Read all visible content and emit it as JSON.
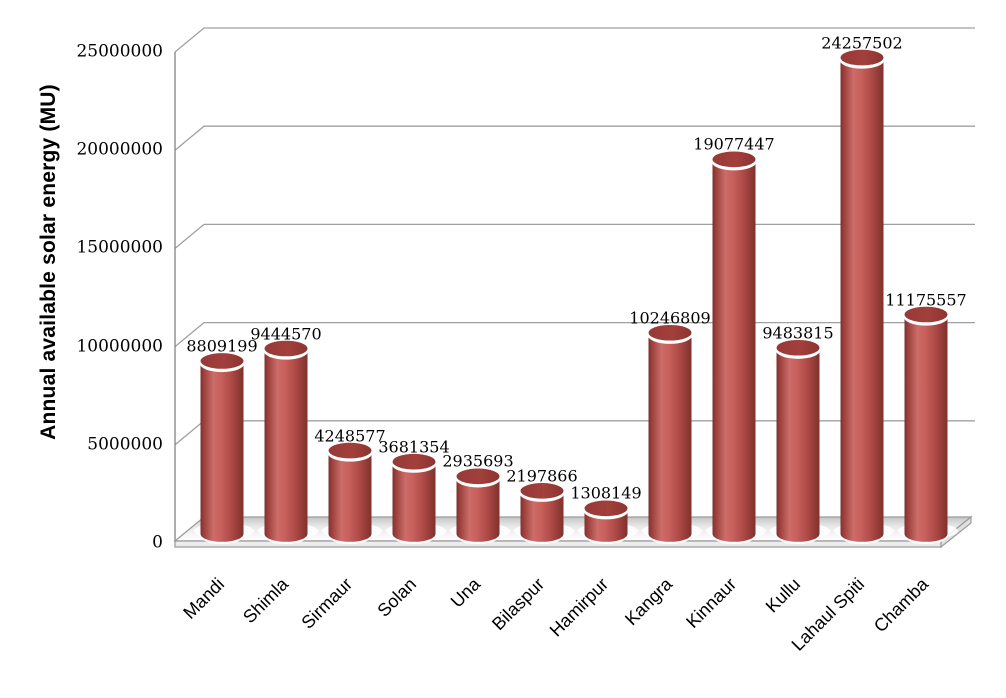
{
  "chart_data": {
    "type": "bar",
    "subtype": "3d-cylinder",
    "title": "",
    "xlabel": "",
    "ylabel": "Annual available solar energy (MU)",
    "categories": [
      "Mandi",
      "Shimla",
      "Sirmaur",
      "Solan",
      "Una",
      "Bilaspur",
      "Hamirpur",
      "Kangra",
      "Kinnaur",
      "Kullu",
      "Lahaul Spiti",
      "Chamba"
    ],
    "values": [
      8809199,
      9444570,
      4248577,
      3681354,
      2935693,
      2197866,
      1308149,
      10246809,
      19077447,
      9483815,
      24257502,
      11175557
    ],
    "data_labels": [
      "8809199",
      "9444570",
      "4248577",
      "3681354",
      "2935693",
      "2197866",
      "1308149",
      "10246809",
      "19077447",
      "9483815",
      "24257502",
      "11175557"
    ],
    "ylim": [
      0,
      25000000
    ],
    "ytick_step": 5000000,
    "yticks": [
      0,
      5000000,
      10000000,
      15000000,
      20000000,
      25000000
    ],
    "ytick_labels": [
      "0",
      "5000000",
      "10000000",
      "15000000",
      "20000000",
      "25000000"
    ],
    "grid": true,
    "legend": "none",
    "colors": {
      "background": "#ffffff",
      "text": "#000000",
      "gridline": "#a0a0a0",
      "axis": "#8c8c8c",
      "floor_border": "#9a9a9a",
      "floor_front": "#ededed",
      "floor_side": "#e0e0e0",
      "bar_main": "#c0504d",
      "bar_rim": "#ffffff",
      "bar_body_gradient": [
        {
          "offset": 0,
          "color": "#7f312e"
        },
        {
          "offset": 0.08,
          "color": "#9c403d"
        },
        {
          "offset": 0.3,
          "color": "#cd6c69"
        },
        {
          "offset": 0.48,
          "color": "#c75f5c"
        },
        {
          "offset": 0.7,
          "color": "#b04b48"
        },
        {
          "offset": 1,
          "color": "#7f312e"
        }
      ],
      "bar_top_gradient": [
        {
          "offset": 0,
          "color": "#953a37"
        },
        {
          "offset": 0.55,
          "color": "#a33f3c"
        },
        {
          "offset": 1,
          "color": "#8b3431"
        }
      ],
      "floor_gradient": [
        {
          "offset": 0,
          "color": "#c6c6c6"
        },
        {
          "offset": 0.4,
          "color": "#e9e9e9"
        },
        {
          "offset": 1,
          "color": "#ffffff"
        }
      ]
    }
  }
}
